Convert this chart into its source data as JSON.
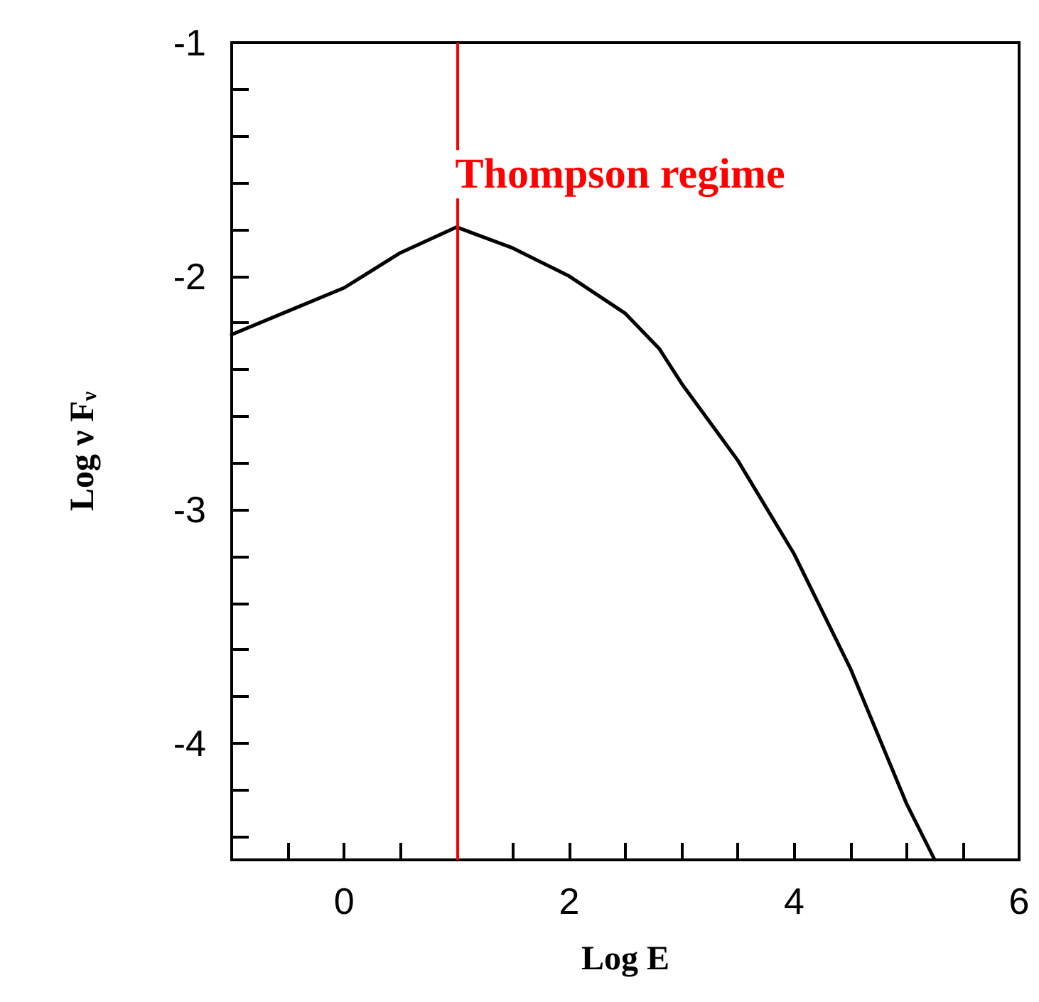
{
  "chart_data": {
    "type": "line",
    "xlabel": "Log E",
    "ylabel": "Log ν F$_{ν}$",
    "x": [
      -1,
      -0.5,
      0,
      0.5,
      1,
      1.5,
      2,
      2.5,
      2.8,
      3,
      3.5,
      4,
      4.5,
      5,
      5.25
    ],
    "series": [
      {
        "color": "#000000",
        "values": [
          -2.25,
          -2.15,
          -2.05,
          -1.9,
          -1.79,
          -1.88,
          -2.0,
          -2.16,
          -2.31,
          -2.46,
          -2.79,
          -3.19,
          -3.68,
          -4.26,
          -4.5
        ]
      }
    ],
    "xlim": [
      -1,
      6
    ],
    "xticks": [
      {
        "value": -0.5,
        "label": null
      },
      0,
      {
        "value": 0.5,
        "label": null
      },
      {
        "value": 1,
        "label": null
      },
      {
        "value": 1.5,
        "label": null
      },
      2,
      {
        "value": 2.5,
        "label": null
      },
      {
        "value": 3,
        "label": null
      },
      {
        "value": 3.5,
        "label": null
      },
      4,
      {
        "value": 4.5,
        "label": null
      },
      {
        "value": 5,
        "label": null
      },
      {
        "value": 5.5,
        "label": null
      },
      6
    ],
    "ylim": [
      -4.5,
      -1
    ],
    "yticks": [
      {
        "value": -4.4,
        "label": null
      },
      {
        "value": -4.2,
        "label": null
      },
      -4,
      {
        "value": -3.8,
        "label": null
      },
      {
        "value": -3.6,
        "label": null
      },
      {
        "value": -3.4,
        "label": null
      },
      {
        "value": -3.2,
        "label": null
      },
      -3,
      {
        "value": -2.8,
        "label": null
      },
      {
        "value": -2.6,
        "label": null
      },
      {
        "value": -2.4,
        "label": null
      },
      {
        "value": -2.2,
        "label": null
      },
      -2,
      {
        "value": -1.8,
        "label": null
      },
      {
        "value": -1.6,
        "label": null
      },
      {
        "value": -1.4,
        "label": null
      },
      {
        "value": -1.2,
        "label": null
      },
      -1
    ],
    "ref_lines": [
      {
        "axis": "x",
        "value": 1,
        "color": "#ff0000"
      }
    ],
    "annotations": [
      {
        "text": "Thompson regime",
        "x": 1,
        "y": -1.6
      }
    ],
    "grid": false,
    "marker": "none",
    "line_style": "solid"
  }
}
